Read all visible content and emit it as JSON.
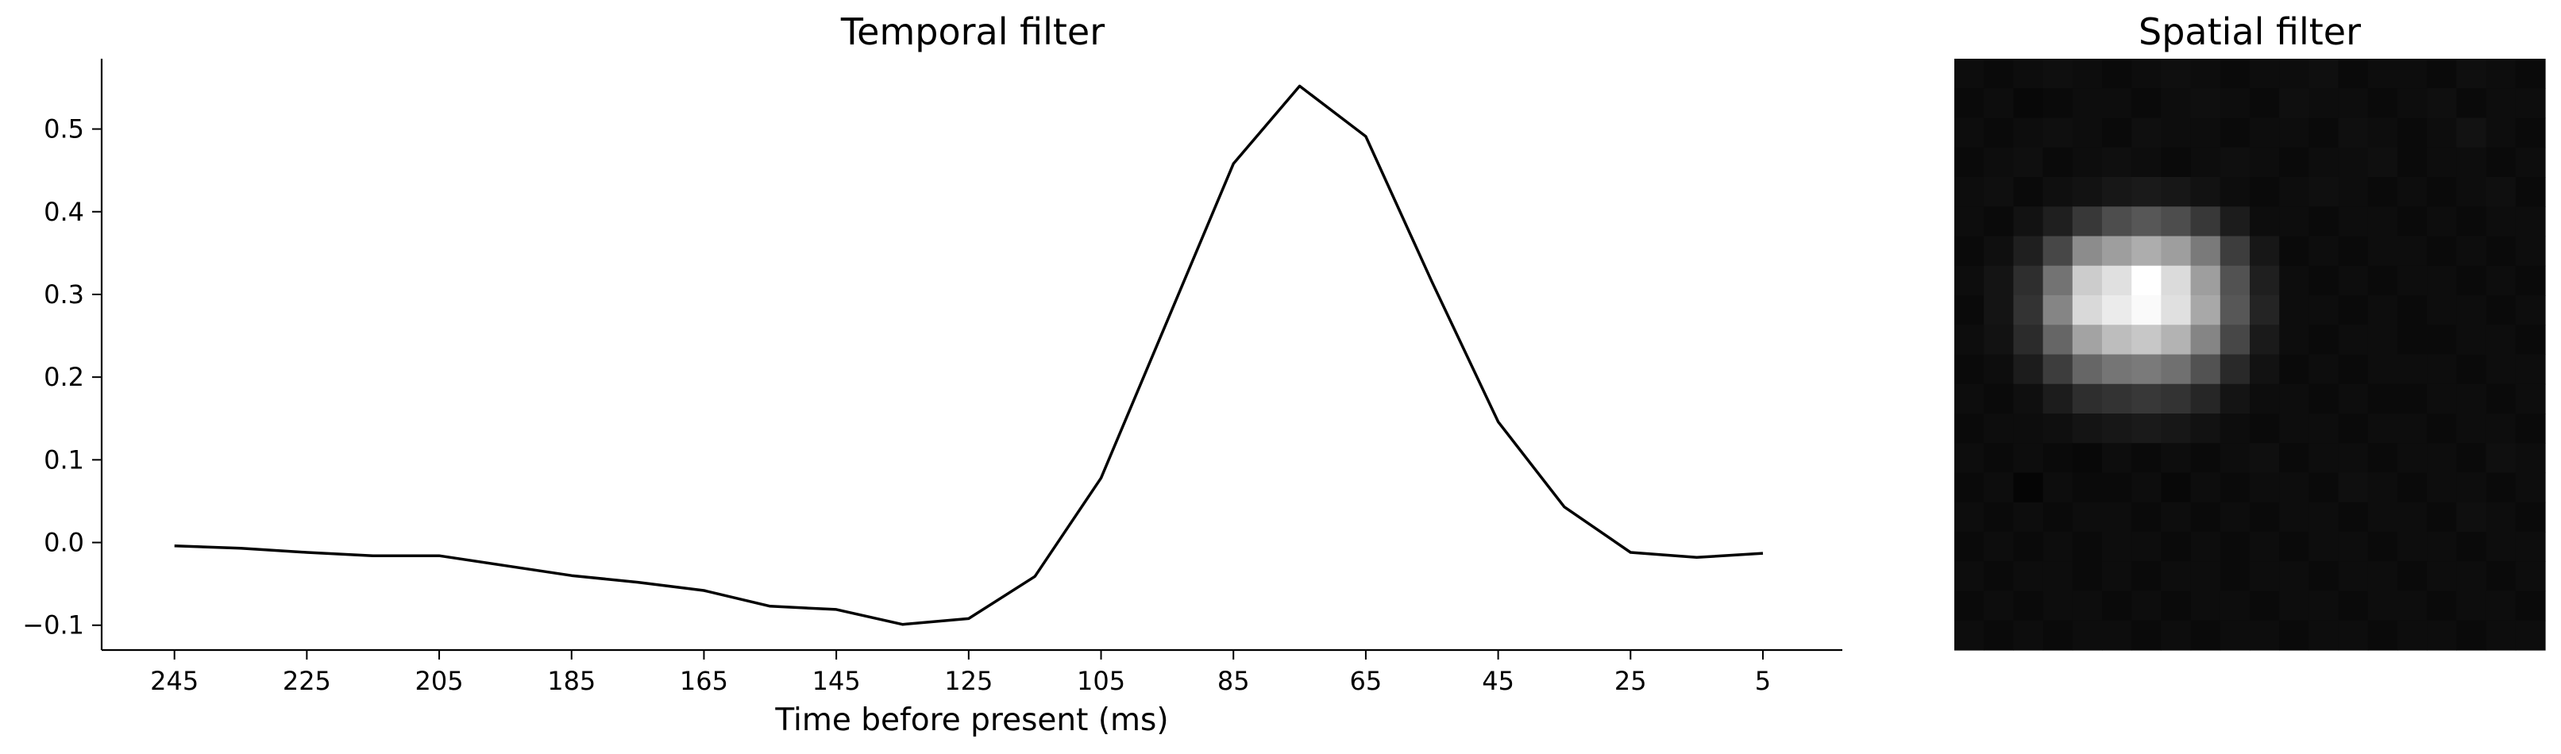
{
  "chart_data": [
    {
      "type": "line",
      "title": "Temporal filter",
      "xlabel": "Time before present (ms)",
      "ylabel": "",
      "x_reversed": true,
      "xlim": [
        256,
        -7
      ],
      "ylim": [
        -0.13,
        0.585
      ],
      "xticks": [
        245,
        225,
        205,
        185,
        165,
        145,
        125,
        105,
        85,
        65,
        45,
        25,
        5
      ],
      "yticks": [
        -0.1,
        0.0,
        0.1,
        0.2,
        0.3,
        0.4,
        0.5
      ],
      "ytick_labels": [
        "−0.1",
        "0.0",
        "0.1",
        "0.2",
        "0.3",
        "0.4",
        "0.5"
      ],
      "grid": false,
      "line_color": "#000000",
      "x": [
        245,
        235,
        225,
        215,
        205,
        195,
        185,
        175,
        165,
        155,
        145,
        135,
        125,
        115,
        105,
        95,
        85,
        75,
        65,
        55,
        45,
        35,
        25,
        15,
        5
      ],
      "y": [
        -0.004,
        -0.007,
        -0.012,
        -0.016,
        -0.016,
        -0.028,
        -0.04,
        -0.048,
        -0.058,
        -0.077,
        -0.081,
        -0.099,
        -0.092,
        -0.041,
        0.078,
        0.268,
        0.458,
        0.552,
        0.491,
        0.315,
        0.146,
        0.043,
        -0.012,
        -0.018,
        -0.013
      ]
    },
    {
      "type": "heatmap",
      "title": "Spatial filter",
      "colormap": "gray",
      "axes_visible": false,
      "values": [
        [
          0.05,
          0.04,
          0.05,
          0.06,
          0.05,
          0.04,
          0.05,
          0.06,
          0.05,
          0.04,
          0.05,
          0.05,
          0.06,
          0.04,
          0.05,
          0.05,
          0.04,
          0.06,
          0.05,
          0.04
        ],
        [
          0.04,
          0.05,
          0.03,
          0.04,
          0.05,
          0.05,
          0.04,
          0.05,
          0.06,
          0.05,
          0.04,
          0.06,
          0.05,
          0.05,
          0.04,
          0.05,
          0.06,
          0.04,
          0.05,
          0.05
        ],
        [
          0.05,
          0.04,
          0.05,
          0.06,
          0.05,
          0.04,
          0.06,
          0.05,
          0.05,
          0.04,
          0.05,
          0.05,
          0.04,
          0.06,
          0.05,
          0.04,
          0.05,
          0.07,
          0.05,
          0.04
        ],
        [
          0.04,
          0.05,
          0.06,
          0.04,
          0.05,
          0.06,
          0.05,
          0.04,
          0.05,
          0.06,
          0.05,
          0.04,
          0.05,
          0.05,
          0.06,
          0.04,
          0.05,
          0.05,
          0.04,
          0.05
        ],
        [
          0.05,
          0.06,
          0.04,
          0.06,
          0.07,
          0.09,
          0.1,
          0.09,
          0.07,
          0.05,
          0.04,
          0.05,
          0.06,
          0.05,
          0.04,
          0.05,
          0.04,
          0.05,
          0.06,
          0.04
        ],
        [
          0.05,
          0.04,
          0.07,
          0.12,
          0.22,
          0.3,
          0.34,
          0.3,
          0.22,
          0.11,
          0.05,
          0.05,
          0.04,
          0.05,
          0.05,
          0.04,
          0.05,
          0.04,
          0.05,
          0.05
        ],
        [
          0.04,
          0.06,
          0.12,
          0.28,
          0.55,
          0.62,
          0.68,
          0.62,
          0.48,
          0.24,
          0.09,
          0.04,
          0.05,
          0.04,
          0.05,
          0.05,
          0.04,
          0.05,
          0.04,
          0.05
        ],
        [
          0.05,
          0.08,
          0.18,
          0.45,
          0.8,
          0.88,
          1.0,
          0.86,
          0.62,
          0.32,
          0.12,
          0.05,
          0.04,
          0.05,
          0.04,
          0.05,
          0.05,
          0.04,
          0.05,
          0.04
        ],
        [
          0.04,
          0.08,
          0.2,
          0.52,
          0.85,
          0.92,
          0.98,
          0.88,
          0.66,
          0.34,
          0.14,
          0.05,
          0.05,
          0.04,
          0.05,
          0.04,
          0.05,
          0.05,
          0.04,
          0.05
        ],
        [
          0.05,
          0.07,
          0.17,
          0.4,
          0.64,
          0.74,
          0.78,
          0.7,
          0.52,
          0.28,
          0.1,
          0.05,
          0.04,
          0.05,
          0.05,
          0.04,
          0.04,
          0.05,
          0.05,
          0.04
        ],
        [
          0.04,
          0.05,
          0.11,
          0.24,
          0.4,
          0.46,
          0.48,
          0.44,
          0.32,
          0.16,
          0.07,
          0.04,
          0.05,
          0.04,
          0.05,
          0.05,
          0.05,
          0.04,
          0.05,
          0.05
        ],
        [
          0.05,
          0.04,
          0.06,
          0.11,
          0.18,
          0.2,
          0.22,
          0.2,
          0.15,
          0.08,
          0.05,
          0.05,
          0.04,
          0.05,
          0.04,
          0.04,
          0.05,
          0.05,
          0.04,
          0.05
        ],
        [
          0.04,
          0.05,
          0.05,
          0.06,
          0.08,
          0.09,
          0.1,
          0.09,
          0.07,
          0.05,
          0.04,
          0.05,
          0.05,
          0.04,
          0.05,
          0.05,
          0.04,
          0.05,
          0.05,
          0.04
        ],
        [
          0.05,
          0.04,
          0.05,
          0.04,
          0.03,
          0.05,
          0.04,
          0.05,
          0.04,
          0.05,
          0.06,
          0.04,
          0.05,
          0.05,
          0.04,
          0.05,
          0.05,
          0.04,
          0.06,
          0.05
        ],
        [
          0.04,
          0.05,
          0.02,
          0.05,
          0.04,
          0.04,
          0.05,
          0.03,
          0.05,
          0.04,
          0.05,
          0.05,
          0.04,
          0.06,
          0.05,
          0.04,
          0.05,
          0.05,
          0.04,
          0.05
        ],
        [
          0.05,
          0.04,
          0.05,
          0.04,
          0.05,
          0.05,
          0.04,
          0.05,
          0.04,
          0.05,
          0.04,
          0.05,
          0.05,
          0.04,
          0.05,
          0.05,
          0.04,
          0.06,
          0.05,
          0.04
        ],
        [
          0.04,
          0.05,
          0.04,
          0.05,
          0.04,
          0.05,
          0.05,
          0.04,
          0.05,
          0.04,
          0.05,
          0.04,
          0.05,
          0.05,
          0.04,
          0.05,
          0.05,
          0.04,
          0.05,
          0.05
        ],
        [
          0.05,
          0.04,
          0.05,
          0.05,
          0.04,
          0.05,
          0.04,
          0.05,
          0.05,
          0.04,
          0.05,
          0.05,
          0.04,
          0.05,
          0.05,
          0.04,
          0.05,
          0.05,
          0.04,
          0.05
        ],
        [
          0.04,
          0.05,
          0.04,
          0.05,
          0.05,
          0.04,
          0.05,
          0.04,
          0.05,
          0.05,
          0.04,
          0.05,
          0.05,
          0.04,
          0.05,
          0.05,
          0.04,
          0.05,
          0.05,
          0.04
        ],
        [
          0.05,
          0.04,
          0.05,
          0.04,
          0.05,
          0.05,
          0.04,
          0.05,
          0.04,
          0.05,
          0.05,
          0.04,
          0.05,
          0.05,
          0.04,
          0.05,
          0.05,
          0.04,
          0.05,
          0.05
        ]
      ]
    }
  ]
}
